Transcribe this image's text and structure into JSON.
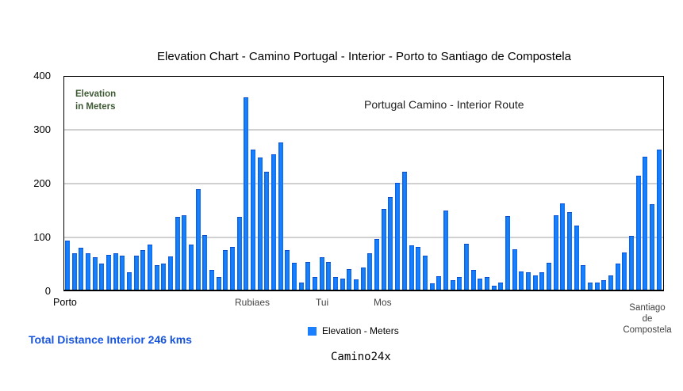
{
  "chart_data": {
    "type": "bar",
    "title": "Elevation Chart - Camino Portugal - Interior - Porto  to  Santiago de Compostela",
    "subtitle": "Portugal Camino - Interior Route",
    "xlabel": "",
    "ylabel": "Elevation in Meters",
    "ylim": [
      0,
      400
    ],
    "yticks": [
      0,
      100,
      200,
      300,
      400
    ],
    "grid": true,
    "legend_position": "bottom",
    "series": [
      {
        "name": "Elevation - Meters",
        "color": "#1a80ff",
        "values": [
          90,
          66,
          77,
          67,
          59,
          48,
          64,
          67,
          62,
          31,
          62,
          72,
          83,
          44,
          47,
          60,
          135,
          138,
          83,
          186,
          100,
          35,
          22,
          72,
          79,
          135,
          358,
          260,
          246,
          219,
          252,
          274,
          72,
          49,
          12,
          50,
          22,
          59,
          50,
          22,
          19,
          37,
          18,
          40,
          66,
          93,
          150,
          172,
          198,
          219,
          81,
          78,
          62,
          10,
          24,
          147,
          16,
          22,
          85,
          35,
          19,
          22,
          6,
          12,
          137,
          74,
          33,
          31,
          25,
          31,
          49,
          138,
          160,
          143,
          118,
          44,
          12,
          12,
          16,
          25,
          47,
          68,
          99,
          212,
          248,
          159,
          260
        ]
      }
    ],
    "x_labels": [
      {
        "label": "Porto",
        "index": 0
      },
      {
        "label": "Rubiaes",
        "index": 27
      },
      {
        "label": "Tui",
        "index": 37
      },
      {
        "label": "Mos",
        "index": 46
      },
      {
        "label": "Santiago de Compostela",
        "index": 85
      }
    ]
  },
  "header": {
    "title": "Elevation Chart - Camino Portugal - Interior - Porto  to  Santiago de Compostela"
  },
  "plot": {
    "ylabel_line1": "Elevation",
    "ylabel_line2": "in Meters",
    "subtitle": "Portugal Camino - Interior Route",
    "yticks": [
      "400",
      "300",
      "200",
      "100",
      "0"
    ]
  },
  "xaxis": {
    "porto": "Porto",
    "rubiaes": "Rubiaes",
    "tui": "Tui",
    "mos": "Mos",
    "santiago_line1": "Santiago",
    "santiago_line2": "de",
    "santiago_line3": "Compostela"
  },
  "legend": {
    "label": "Elevation - Meters"
  },
  "footer": {
    "distance": "Total Distance Interior   246 kms",
    "credit": "Camino24x"
  }
}
